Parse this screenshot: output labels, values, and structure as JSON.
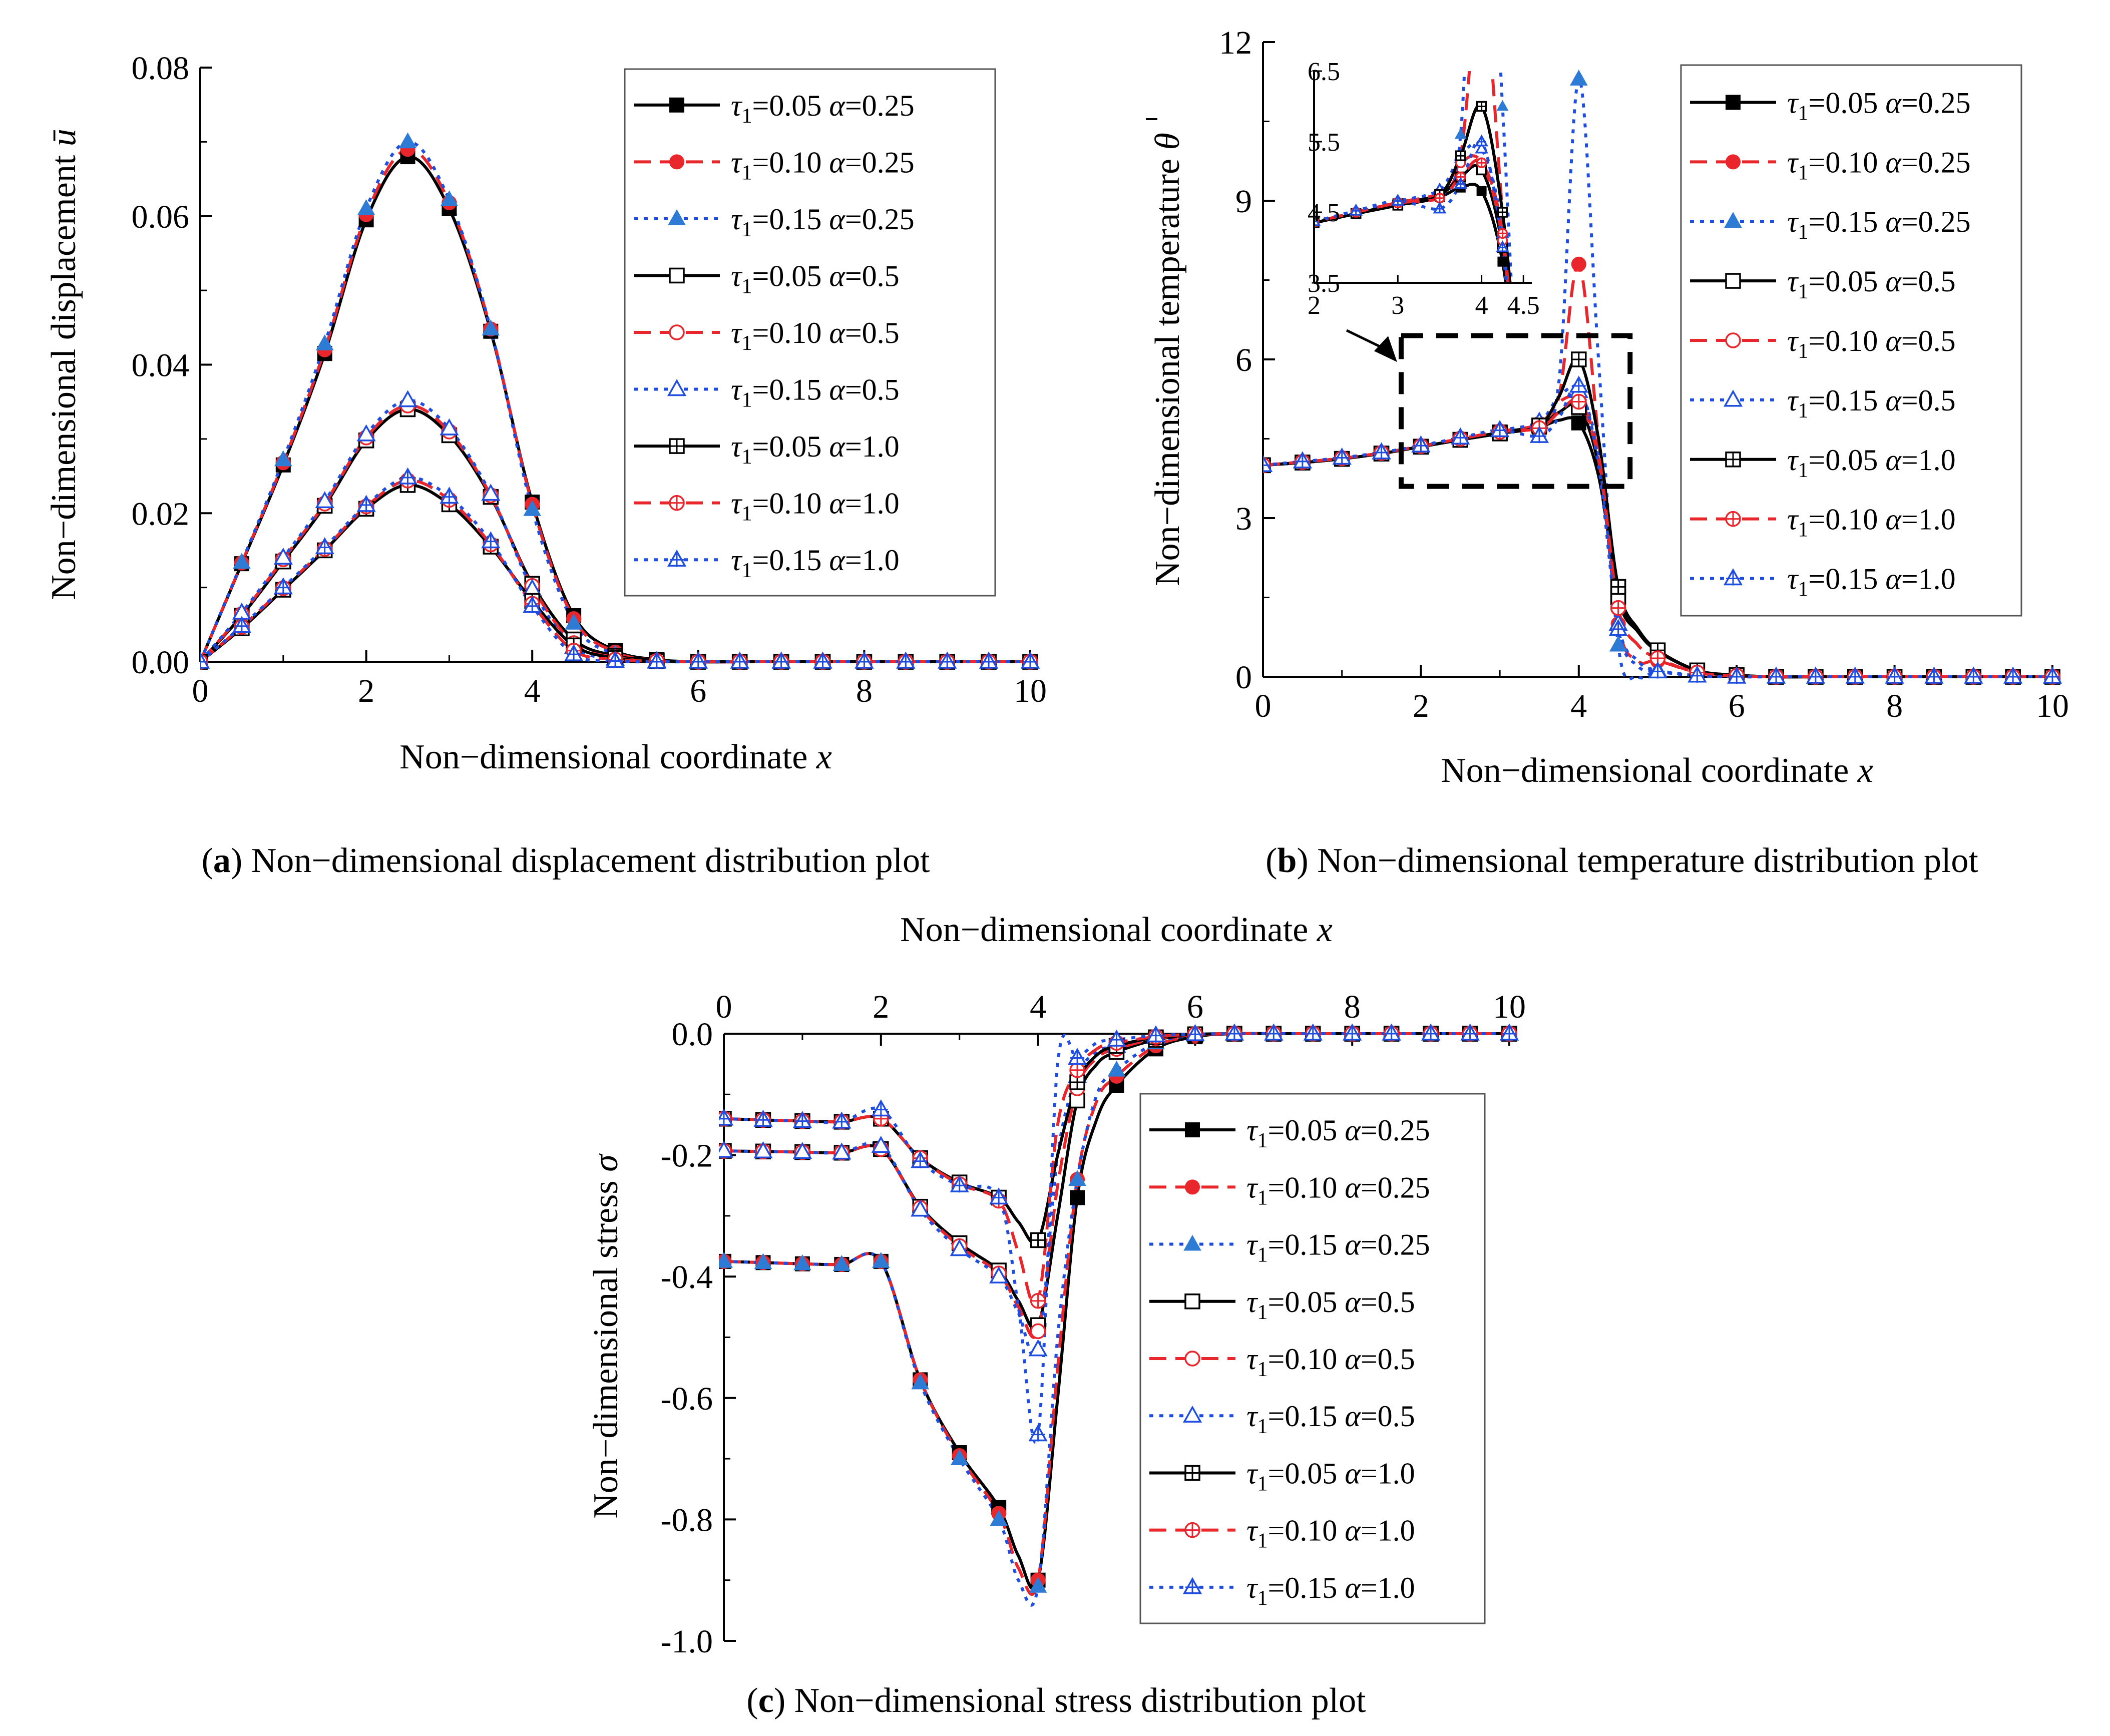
{
  "colors": {
    "black": "#000000",
    "red": "#e8262b",
    "blue": "#1f4de0",
    "blueFill": "#2e7bd6"
  },
  "legend": [
    {
      "tau": "0.05",
      "alpha": "0.25",
      "color": "black",
      "dash": "solid",
      "marker": "square-filled"
    },
    {
      "tau": "0.10",
      "alpha": "0.25",
      "color": "red",
      "dash": "dash",
      "marker": "circle-filled"
    },
    {
      "tau": "0.15",
      "alpha": "0.25",
      "color": "blue",
      "dash": "dot",
      "marker": "triangle-filled"
    },
    {
      "tau": "0.05",
      "alpha": "0.5",
      "color": "black",
      "dash": "solid",
      "marker": "square-open"
    },
    {
      "tau": "0.10",
      "alpha": "0.5",
      "color": "red",
      "dash": "dash",
      "marker": "circle-open"
    },
    {
      "tau": "0.15",
      "alpha": "0.5",
      "color": "blue",
      "dash": "dot",
      "marker": "triangle-open"
    },
    {
      "tau": "0.05",
      "alpha": "1.0",
      "color": "black",
      "dash": "solid",
      "marker": "square-cross"
    },
    {
      "tau": "0.10",
      "alpha": "1.0",
      "color": "red",
      "dash": "dash",
      "marker": "circle-cross"
    },
    {
      "tau": "0.15",
      "alpha": "1.0",
      "color": "blue",
      "dash": "dot",
      "marker": "triangle-cross"
    }
  ],
  "chart_data": [
    {
      "id": "a",
      "type": "line",
      "caption_letter": "a",
      "caption": "Non−dimensional displacement distribution plot",
      "xlabel": "Non−dimensional coordinate",
      "xvar": "x",
      "ylabel": "Non−dimensional displacement",
      "yvar": "ū",
      "xlim": [
        0,
        10
      ],
      "ylim": [
        0,
        0.08
      ],
      "xticks": [
        "0",
        "2",
        "4",
        "6",
        "8",
        "10"
      ],
      "yticks": [
        "0.00",
        "0.02",
        "0.04",
        "0.06",
        "0.08"
      ],
      "x": [
        0,
        0.5,
        1,
        1.5,
        2,
        2.5,
        3,
        3.5,
        4,
        4.5,
        5,
        5.5,
        6,
        6.5,
        7,
        7.5,
        8,
        8.5,
        9,
        9.5,
        10
      ],
      "series": [
        {
          "name": "τ1=0.05 α=0.25",
          "values": [
            0,
            0.0132,
            0.0265,
            0.0415,
            0.0595,
            0.068,
            0.061,
            0.0445,
            0.0215,
            0.0062,
            0.0015,
            0.0003,
            0,
            0,
            0,
            0,
            0,
            0,
            0,
            0,
            0
          ]
        },
        {
          "name": "τ1=0.10 α=0.25",
          "values": [
            0,
            0.0133,
            0.0268,
            0.042,
            0.0602,
            0.069,
            0.0618,
            0.0448,
            0.0212,
            0.0058,
            0.0013,
            0.0002,
            0,
            0,
            0,
            0,
            0,
            0,
            0,
            0,
            0
          ]
        },
        {
          "name": "τ1=0.15 α=0.25",
          "values": [
            0,
            0.0134,
            0.0272,
            0.0428,
            0.061,
            0.07,
            0.0622,
            0.0448,
            0.0205,
            0.0052,
            0.001,
            0.0001,
            0,
            0,
            0,
            0,
            0,
            0,
            0,
            0,
            0
          ]
        },
        {
          "name": "τ1=0.05 α=0.5",
          "values": [
            0,
            0.0062,
            0.0135,
            0.021,
            0.0298,
            0.034,
            0.0305,
            0.0222,
            0.0105,
            0.003,
            0.0008,
            0.0002,
            0,
            0,
            0,
            0,
            0,
            0,
            0,
            0,
            0
          ]
        },
        {
          "name": "τ1=0.10 α=0.5",
          "values": [
            0,
            0.0064,
            0.0138,
            0.0213,
            0.0302,
            0.0345,
            0.031,
            0.0224,
            0.0102,
            0.0025,
            0.0006,
            0.0001,
            0,
            0,
            0,
            0,
            0,
            0,
            0,
            0,
            0
          ]
        },
        {
          "name": "τ1=0.15 α=0.5",
          "values": [
            0,
            0.0066,
            0.014,
            0.0216,
            0.0306,
            0.0352,
            0.0314,
            0.0226,
            0.0098,
            0.002,
            0.0004,
            0.0001,
            0,
            0,
            0,
            0,
            0,
            0,
            0,
            0,
            0
          ]
        },
        {
          "name": "τ1=0.05 α=1.0",
          "values": [
            0,
            0.0045,
            0.0097,
            0.015,
            0.0206,
            0.0238,
            0.0212,
            0.0155,
            0.0082,
            0.0022,
            0.0005,
            0.0001,
            0,
            0,
            0,
            0,
            0,
            0,
            0,
            0,
            0
          ]
        },
        {
          "name": "τ1=0.10 α=1.0",
          "values": [
            0,
            0.0047,
            0.0099,
            0.0152,
            0.0209,
            0.0244,
            0.0218,
            0.0158,
            0.0078,
            0.0015,
            0.0003,
            0.0001,
            0,
            0,
            0,
            0,
            0,
            0,
            0,
            0,
            0
          ]
        },
        {
          "name": "τ1=0.15 α=1.0",
          "values": [
            0,
            0.0048,
            0.01,
            0.0154,
            0.0211,
            0.0248,
            0.0222,
            0.0162,
            0.0075,
            0.001,
            0.0001,
            0,
            0,
            0,
            0,
            0,
            0,
            0,
            0,
            0,
            0
          ]
        }
      ]
    },
    {
      "id": "b",
      "type": "line",
      "caption_letter": "b",
      "caption": "Non−dimensional temperature distribution plot",
      "xlabel": "Non−dimensional coordinate",
      "xvar": "x",
      "ylabel": "Non−dimensional temperature",
      "yvar": "θ",
      "xlim": [
        0,
        10
      ],
      "ylim": [
        0,
        12
      ],
      "xticks": [
        "0",
        "2",
        "4",
        "6",
        "8",
        "10"
      ],
      "yticks": [
        "0",
        "3",
        "6",
        "9",
        "12"
      ],
      "inset": {
        "xlim": [
          2,
          4.6
        ],
        "ylim": [
          3.5,
          6.5
        ],
        "xticks": [
          "2",
          "3",
          "4",
          "4.5"
        ],
        "xtick_values": [
          2,
          3,
          4,
          4.5
        ],
        "yticks": [
          "3.5",
          "4.5",
          "5.5",
          "6.5"
        ],
        "zoom_box": {
          "x": [
            1.75,
            4.65
          ],
          "y": [
            3.6,
            6.45
          ]
        }
      },
      "x": [
        0,
        0.5,
        1,
        1.5,
        2,
        2.5,
        3,
        3.5,
        3.75,
        4,
        4.25,
        4.5,
        4.75,
        5,
        5.5,
        6,
        6.5,
        7,
        7.5,
        8,
        8.5,
        9,
        9.5,
        10
      ],
      "series": [
        {
          "name": "τ1=0.05 α=0.25",
          "values": [
            4.0,
            4.05,
            4.12,
            4.22,
            4.35,
            4.48,
            4.6,
            4.72,
            4.85,
            4.8,
            3.8,
            1.6,
            0.9,
            0.5,
            0.12,
            0.03,
            0,
            0,
            0,
            0,
            0,
            0,
            0,
            0
          ]
        },
        {
          "name": "τ1=0.10 α=0.25",
          "values": [
            4.0,
            4.06,
            4.13,
            4.23,
            4.36,
            4.5,
            4.63,
            4.76,
            5.3,
            7.8,
            4.5,
            1.0,
            0.3,
            0.3,
            0.08,
            0.02,
            0,
            0,
            0,
            0,
            0,
            0,
            0,
            0
          ]
        },
        {
          "name": "τ1=0.15 α=0.25",
          "values": [
            4.0,
            4.07,
            4.14,
            4.24,
            4.37,
            4.52,
            4.66,
            4.8,
            5.6,
            11.3,
            6.0,
            0.6,
            0.0,
            0.1,
            0.02,
            0,
            0,
            0,
            0,
            0,
            0,
            0,
            0,
            0
          ]
        },
        {
          "name": "τ1=0.05 α=0.5",
          "values": [
            4.0,
            4.05,
            4.12,
            4.22,
            4.35,
            4.48,
            4.62,
            4.75,
            5.0,
            5.1,
            4.0,
            1.5,
            0.85,
            0.48,
            0.12,
            0.03,
            0,
            0,
            0,
            0,
            0,
            0,
            0,
            0
          ]
        },
        {
          "name": "τ1=0.10 α=0.5",
          "values": [
            4.0,
            4.06,
            4.13,
            4.23,
            4.36,
            4.5,
            4.64,
            4.78,
            5.2,
            5.2,
            4.1,
            1.3,
            0.6,
            0.35,
            0.08,
            0.02,
            0,
            0,
            0,
            0,
            0,
            0,
            0,
            0
          ]
        },
        {
          "name": "τ1=0.15 α=0.5",
          "values": [
            4.0,
            4.07,
            4.14,
            4.24,
            4.37,
            4.52,
            4.66,
            4.82,
            5.3,
            5.4,
            4.2,
            1.0,
            0.3,
            0.12,
            0.02,
            0,
            0,
            0,
            0,
            0,
            0,
            0,
            0,
            0
          ]
        },
        {
          "name": "τ1=0.05 α=1.0",
          "values": [
            4.0,
            4.05,
            4.12,
            4.22,
            4.35,
            4.48,
            4.6,
            4.75,
            5.3,
            6.0,
            4.5,
            1.7,
            0.9,
            0.5,
            0.12,
            0.03,
            0,
            0,
            0,
            0,
            0,
            0,
            0,
            0
          ]
        },
        {
          "name": "τ1=0.10 α=1.0",
          "values": [
            4.0,
            4.06,
            4.13,
            4.23,
            4.36,
            4.5,
            4.63,
            4.7,
            5.0,
            5.2,
            4.2,
            1.3,
            0.6,
            0.35,
            0.08,
            0.02,
            0,
            0,
            0,
            0,
            0,
            0,
            0,
            0
          ]
        },
        {
          "name": "τ1=0.15 α=1.0",
          "values": [
            4.0,
            4.07,
            4.14,
            4.24,
            4.37,
            4.52,
            4.66,
            4.55,
            4.9,
            5.5,
            4.0,
            0.9,
            0.2,
            0.1,
            0.02,
            0,
            0,
            0,
            0,
            0,
            0,
            0,
            0,
            0
          ]
        }
      ]
    },
    {
      "id": "c",
      "type": "line",
      "caption_letter": "c",
      "caption": "Non−dimensional stress distribution plot",
      "xlabel": "Non−dimensional coordinate",
      "xvar": "x",
      "ylabel": "Non−dimensional stress",
      "yvar": "σ",
      "xlim": [
        0,
        10
      ],
      "ylim": [
        -1.0,
        0.0
      ],
      "xaxis_position": "top",
      "xticks": [
        "0",
        "2",
        "4",
        "6",
        "8",
        "10"
      ],
      "yticks": [
        "0.0",
        "-0.2",
        "-0.4",
        "-0.6",
        "-0.8",
        "-1.0"
      ],
      "x": [
        0,
        0.5,
        1,
        1.5,
        2,
        2.5,
        3,
        3.5,
        3.75,
        4,
        4.25,
        4.5,
        4.75,
        5,
        5.5,
        6,
        6.5,
        7,
        7.5,
        8,
        8.5,
        9,
        9.5,
        10
      ],
      "series": [
        {
          "name": "τ1=0.05 α=0.25",
          "values": [
            -0.375,
            -0.377,
            -0.379,
            -0.38,
            -0.375,
            -0.57,
            -0.69,
            -0.78,
            -0.86,
            -0.9,
            -0.6,
            -0.27,
            -0.14,
            -0.085,
            -0.025,
            -0.005,
            0,
            0,
            0,
            0,
            0,
            0,
            0,
            0
          ]
        },
        {
          "name": "τ1=0.10 α=0.25",
          "values": [
            -0.375,
            -0.377,
            -0.379,
            -0.38,
            -0.375,
            -0.57,
            -0.695,
            -0.79,
            -0.88,
            -0.9,
            -0.55,
            -0.24,
            -0.11,
            -0.07,
            -0.02,
            -0.004,
            0,
            0,
            0,
            0,
            0,
            0,
            0,
            0
          ]
        },
        {
          "name": "τ1=0.15 α=0.25",
          "values": [
            -0.375,
            -0.377,
            -0.379,
            -0.38,
            -0.375,
            -0.575,
            -0.7,
            -0.8,
            -0.9,
            -0.91,
            -0.5,
            -0.24,
            -0.1,
            -0.06,
            -0.015,
            -0.003,
            0,
            0,
            0,
            0,
            0,
            0,
            0,
            0
          ]
        },
        {
          "name": "τ1=0.05 α=0.5",
          "values": [
            -0.193,
            -0.194,
            -0.195,
            -0.196,
            -0.19,
            -0.285,
            -0.345,
            -0.39,
            -0.44,
            -0.48,
            -0.3,
            -0.11,
            -0.05,
            -0.03,
            -0.01,
            -0.002,
            0,
            0,
            0,
            0,
            0,
            0,
            0,
            0
          ]
        },
        {
          "name": "τ1=0.10 α=0.5",
          "values": [
            -0.193,
            -0.194,
            -0.195,
            -0.196,
            -0.19,
            -0.287,
            -0.35,
            -0.395,
            -0.45,
            -0.49,
            -0.25,
            -0.09,
            -0.04,
            -0.025,
            -0.008,
            -0.002,
            0,
            0,
            0,
            0,
            0,
            0,
            0,
            0
          ]
        },
        {
          "name": "τ1=0.15 α=0.5",
          "values": [
            -0.193,
            -0.194,
            -0.195,
            -0.196,
            -0.185,
            -0.29,
            -0.355,
            -0.4,
            -0.46,
            -0.52,
            -0.2,
            -0.07,
            -0.03,
            -0.02,
            -0.006,
            -0.001,
            0,
            0,
            0,
            0,
            0,
            0,
            0,
            0
          ]
        },
        {
          "name": "τ1=0.05 α=1.0",
          "values": [
            -0.14,
            -0.142,
            -0.144,
            -0.145,
            -0.14,
            -0.205,
            -0.245,
            -0.27,
            -0.31,
            -0.34,
            -0.2,
            -0.08,
            -0.035,
            -0.02,
            -0.006,
            -0.001,
            0,
            0,
            0,
            0,
            0,
            0,
            0,
            0
          ]
        },
        {
          "name": "τ1=0.10 α=1.0",
          "values": [
            -0.14,
            -0.142,
            -0.144,
            -0.145,
            -0.14,
            -0.205,
            -0.248,
            -0.275,
            -0.36,
            -0.44,
            -0.15,
            -0.06,
            -0.025,
            -0.015,
            -0.005,
            -0.001,
            0,
            0,
            0,
            0,
            0,
            0,
            0,
            0
          ]
        },
        {
          "name": "τ1=0.15 α=1.0",
          "values": [
            -0.14,
            -0.142,
            -0.144,
            -0.145,
            -0.125,
            -0.21,
            -0.25,
            -0.27,
            -0.45,
            -0.66,
            -0.05,
            -0.04,
            -0.015,
            -0.01,
            -0.003,
            -0.001,
            0,
            0,
            0,
            0,
            0,
            0,
            0,
            0
          ]
        }
      ]
    }
  ]
}
